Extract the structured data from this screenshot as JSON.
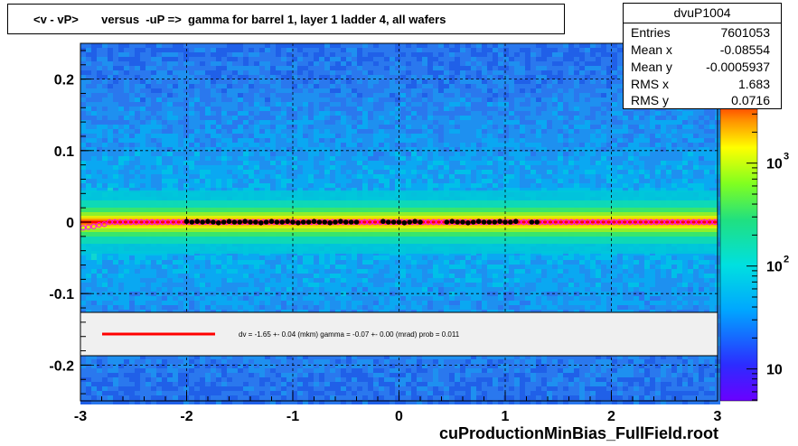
{
  "chart_data": {
    "type": "heatmap",
    "title": "<v - vP>       versus  -uP =>  gamma for barrel 1, layer 1 ladder 4, all wafers",
    "xlabel": "",
    "ylabel": "",
    "xlim": [
      -3,
      3
    ],
    "ylim": [
      -0.25,
      0.25
    ],
    "x_ticks": [
      {
        "value": -3,
        "label": "-3"
      },
      {
        "value": -2,
        "label": "-2"
      },
      {
        "value": -1,
        "label": "-1"
      },
      {
        "value": 0,
        "label": "0"
      },
      {
        "value": 1,
        "label": "1"
      },
      {
        "value": 2,
        "label": "2"
      },
      {
        "value": 3,
        "label": "3"
      }
    ],
    "y_ticks": [
      {
        "value": -0.2,
        "label": "-0.2"
      },
      {
        "value": -0.1,
        "label": "-0.1"
      },
      {
        "value": 0,
        "label": "0"
      },
      {
        "value": 0.1,
        "label": "0.1"
      },
      {
        "value": 0.2,
        "label": "0.2"
      }
    ],
    "grid": true,
    "z_scale": "log",
    "z_ticks": [
      {
        "base": "10",
        "exp": "",
        "label": "10"
      },
      {
        "base": "10",
        "exp": "2",
        "label": "10^2"
      },
      {
        "base": "10",
        "exp": "3",
        "label": "10^3"
      }
    ],
    "fit_line": {
      "slope": 0,
      "intercept": 0,
      "color": "#ff0000"
    },
    "profile_points": {
      "color": "#000000",
      "x": [
        -2.0,
        -1.95,
        -1.9,
        -1.85,
        -1.8,
        -1.75,
        -1.7,
        -1.65,
        -1.6,
        -1.55,
        -1.5,
        -1.45,
        -1.4,
        -1.35,
        -1.3,
        -1.25,
        -1.2,
        -1.15,
        -1.1,
        -1.05,
        -1.0,
        -0.95,
        -0.9,
        -0.85,
        -0.8,
        -0.75,
        -0.7,
        -0.65,
        -0.6,
        -0.55,
        -0.5,
        -0.45,
        -0.4,
        -0.15,
        -0.1,
        -0.05,
        0.0,
        0.05,
        0.1,
        0.15,
        0.2,
        0.45,
        0.5,
        0.55,
        0.6,
        0.65,
        0.7,
        0.75,
        0.8,
        0.85,
        0.9,
        0.95,
        1.0,
        1.05,
        1.1,
        1.25,
        1.3
      ],
      "y": [
        0.001,
        0.0,
        0.001,
        0.0,
        0.001,
        0.0,
        -0.001,
        0.0,
        0.001,
        0.0,
        0.0,
        0.001,
        0.0,
        0.0,
        -0.001,
        0.0,
        0.001,
        0.0,
        0.0,
        0.001,
        0.0,
        -0.001,
        0.0,
        0.0,
        0.001,
        0.0,
        0.0,
        -0.001,
        0.0,
        0.001,
        0.0,
        0.0,
        0.0,
        0.001,
        0.0,
        0.0,
        0.0,
        -0.001,
        0.0,
        0.001,
        0.0,
        0.0,
        0.001,
        0.0,
        0.0,
        -0.001,
        0.0,
        0.001,
        0.0,
        0.0,
        0.0,
        0.001,
        0.0,
        0.0,
        0.001,
        0.0,
        0.0
      ]
    },
    "mean_points": {
      "color": "#ff00ff",
      "x_start": -2.975,
      "x_step": 0.05,
      "count": 120,
      "y_left": [
        -0.008,
        -0.007,
        -0.006,
        -0.004,
        -0.003
      ]
    },
    "legend": {
      "placement": "bottom",
      "text": "dv =   -1.65 +-  0.04 (mkm) gamma =   -0.07 +-  0.00 (mrad) prob = 0.011",
      "line_color": "#ff0000"
    }
  },
  "stats": {
    "title": "dvuP1004",
    "rows": [
      {
        "name": "Entries",
        "value": "7601053"
      },
      {
        "name": "Mean x",
        "value": "-0.08554"
      },
      {
        "name": "Mean y",
        "value": "-0.0005937"
      },
      {
        "name": "RMS x",
        "value": "1.683"
      },
      {
        "name": "RMS y",
        "value": "0.0716"
      }
    ]
  },
  "footer": {
    "text": "cuProductionMinBias_FullField.root"
  }
}
